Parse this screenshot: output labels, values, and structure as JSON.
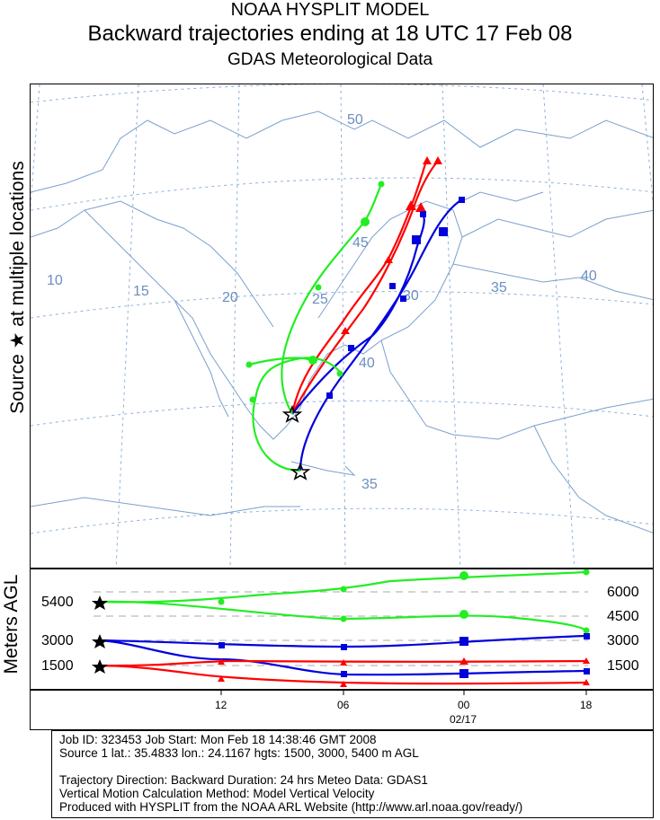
{
  "header": {
    "title": "NOAA HYSPLIT MODEL",
    "subtitle": "Backward trajectories ending at 18 UTC 17 Feb 08",
    "data_source": "GDAS Meteorological Data"
  },
  "side_label": "Source ★ at multiple locations",
  "vertical_axis_label": "Meters AGL",
  "map": {
    "graticule_labels": [
      "50",
      "45",
      "40",
      "35",
      "10",
      "15",
      "20",
      "25",
      "30",
      "35",
      "40"
    ],
    "colors": {
      "red": "#ff0000",
      "blue": "#0000dd",
      "green": "#22ee22",
      "graticule": "#6a8fc0",
      "coast": "#6a8fc0"
    }
  },
  "height_labels_left": [
    "5400",
    "3000",
    "1500"
  ],
  "height_labels_right": [
    "6000",
    "4500",
    "3000",
    "1500"
  ],
  "time_axis": {
    "ticks": [
      "12",
      "06",
      "00",
      "18"
    ],
    "date": "02/17"
  },
  "info": {
    "line1": "Job ID: 323453          Job Start: Mon Feb 18 14:38:46 GMT 2008",
    "line2": "Source 1 lat.: 35.4833  lon.: 24.1167  hgts: 1500, 3000, 5400 m AGL",
    "line3": "Trajectory Direction: Backward    Duration: 24 hrs    Meteo Data: GDAS1",
    "line4": "Vertical Motion Calculation Method: Model Vertical Velocity",
    "line5": "Produced with HYSPLIT from the NOAA ARL Website (http://www.arl.noaa.gov/ready/)"
  }
}
